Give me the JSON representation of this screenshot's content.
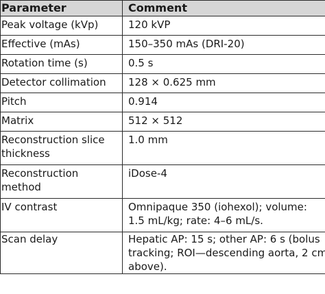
{
  "headers": {
    "parameter": "Parameter",
    "comment": "Comment"
  },
  "rows": [
    {
      "parameter": "Peak voltage (kVp)",
      "comment": "120 kVP"
    },
    {
      "parameter": "Effective (mAs)",
      "comment": "150–350 mAs (DRI-20)"
    },
    {
      "parameter": "Rotation time (s)",
      "comment": "0.5 s"
    },
    {
      "parameter": "Detector collimation",
      "comment": "128 × 0.625 mm"
    },
    {
      "parameter": "Pitch",
      "comment": "0.914"
    },
    {
      "parameter": "Matrix",
      "comment": "512 × 512"
    },
    {
      "parameter": "Reconstruction slice\nthickness",
      "comment": "1.0 mm"
    },
    {
      "parameter": "Reconstruction\nmethod",
      "comment": "iDose-4"
    },
    {
      "parameter": "IV contrast",
      "comment": "Omnipaque 350 (iohexol); volume:\n1.5 mL/kg; rate: 4–6 mL/s."
    },
    {
      "parameter": "Scan delay",
      "comment": "Hepatic AP: 15 s; other AP: 6 s (bolus\ntracking; ROI—descending aorta, 2 cm\nabove)."
    }
  ]
}
